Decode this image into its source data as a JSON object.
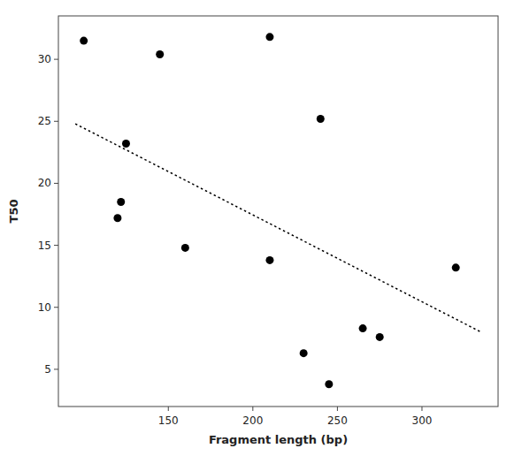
{
  "chart_data": {
    "type": "scatter",
    "xlabel": "Fragment length (bp)",
    "ylabel": "T50",
    "series": [
      {
        "type": "scatter",
        "marker": "circle",
        "color": "#000000",
        "x": [
          100,
          120,
          122,
          125,
          145,
          160,
          210,
          210,
          230,
          240,
          245,
          265,
          275,
          320
        ],
        "values": [
          31.5,
          17.2,
          18.5,
          23.2,
          30.4,
          14.8,
          31.8,
          13.8,
          6.3,
          25.2,
          3.8,
          8.3,
          7.6,
          13.2
        ]
      },
      {
        "type": "line",
        "line_style": "dotted",
        "color": "#000000",
        "x": [
          95,
          335
        ],
        "values": [
          24.8,
          8.0
        ]
      }
    ],
    "xlim": [
      85,
      345
    ],
    "ylim": [
      2,
      33.5
    ],
    "xticks": [
      150,
      200,
      250,
      300
    ],
    "yticks": [
      5,
      10,
      15,
      20,
      25,
      30
    ],
    "grid": false
  }
}
